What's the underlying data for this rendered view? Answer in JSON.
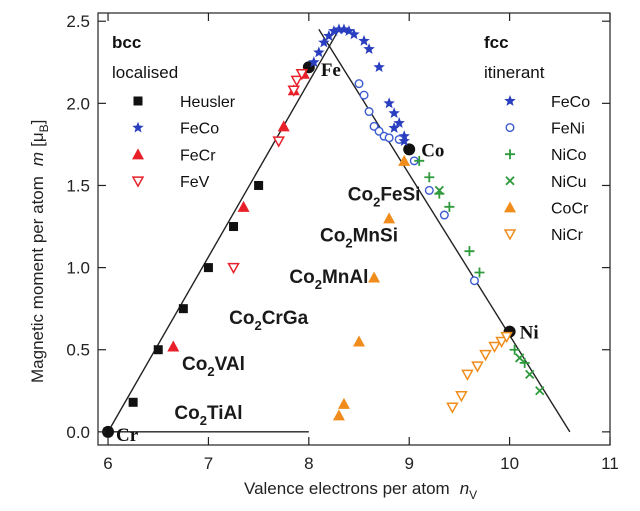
{
  "chart_data": {
    "type": "scatter",
    "xlabel": "Valence electrons per atom",
    "xlabel_symbol": "n",
    "xlabel_sub": "V",
    "ylabel": "Magnetic moment per atom",
    "ylabel_symbol": "m",
    "ylabel_unit": "[μ",
    "ylabel_unit_sub": "B",
    "ylabel_unit_close": "]",
    "xlim": [
      5.9,
      11.0
    ],
    "ylim": [
      -0.08,
      2.55
    ],
    "xticks": [
      "6",
      "7",
      "8",
      "9",
      "10",
      "11"
    ],
    "yticks": [
      "0.0",
      "0.5",
      "1.0",
      "1.5",
      "2.0",
      "2.5"
    ],
    "legend_left": {
      "title_bold": "bcc",
      "title": "localised",
      "entries": [
        "Heusler",
        "FeCo",
        "FeCr",
        "FeV"
      ]
    },
    "legend_right": {
      "title_bold": "fcc",
      "title": "itinerant",
      "entries": [
        "FeCo",
        "FeNi",
        "NiCo",
        "NiCu",
        "CoCr",
        "NiCr"
      ]
    },
    "element_labels": [
      {
        "text": "Cr",
        "x": 6.0,
        "y": 0.0
      },
      {
        "text": "Fe",
        "x": 8.0,
        "y": 2.22
      },
      {
        "text": "Co",
        "x": 9.0,
        "y": 1.72
      },
      {
        "text": "Ni",
        "x": 10.0,
        "y": 0.61
      }
    ],
    "compound_labels": [
      {
        "base": "Co",
        "sub": "2",
        "rest": "FeSi",
        "x": 8.75,
        "y": 1.45
      },
      {
        "base": "Co",
        "sub": "2",
        "rest": "MnSi",
        "x": 8.5,
        "y": 1.2
      },
      {
        "base": "Co",
        "sub": "2",
        "rest": "MnAl",
        "x": 8.2,
        "y": 0.95
      },
      {
        "base": "Co",
        "sub": "2",
        "rest": "CrGa",
        "x": 7.6,
        "y": 0.7
      },
      {
        "base": "Co",
        "sub": "2",
        "rest": "VAl",
        "x": 7.05,
        "y": 0.42
      },
      {
        "base": "Co",
        "sub": "2",
        "rest": "TiAl",
        "x": 7.0,
        "y": 0.12
      }
    ],
    "colors": {
      "Heusler": "#111111",
      "FeCo": "#2a3fbf",
      "FeNi": "#3c5bd0",
      "FeCr": "#e8202a",
      "FeV": "#e8202a",
      "NiCo": "#2e9a3c",
      "NiCu": "#2e9a3c",
      "CoCr": "#f08c1c",
      "NiCr": "#f08c1c",
      "line": "#222222",
      "element": "#111111"
    },
    "slater_pauling_lines": [
      {
        "x": [
          6.0,
          8.3
        ],
        "y": [
          0.0,
          2.45
        ]
      },
      {
        "x": [
          8.1,
          10.6
        ],
        "y": [
          2.45,
          0.0
        ]
      }
    ],
    "baseline": {
      "x": [
        6.0,
        8.0
      ],
      "y": [
        0.0,
        0.0
      ]
    },
    "series": [
      {
        "name": "Heusler",
        "marker": "square",
        "x": [
          6.0,
          6.25,
          6.5,
          6.75,
          7.0,
          7.25,
          7.5
        ],
        "y": [
          0.0,
          0.18,
          0.5,
          0.75,
          1.0,
          1.25,
          1.5
        ]
      },
      {
        "name": "Elements",
        "marker": "dot",
        "x": [
          6.0,
          8.0,
          9.0,
          10.0
        ],
        "y": [
          0.0,
          2.22,
          1.72,
          0.61
        ]
      },
      {
        "name": "FeCr",
        "marker": "triangle",
        "x": [
          6.65,
          7.35,
          7.75,
          7.85,
          7.95
        ],
        "y": [
          0.52,
          1.37,
          1.86,
          2.08,
          2.18
        ]
      },
      {
        "name": "FeV",
        "marker": "triangle-down",
        "x": [
          7.25,
          7.7,
          7.85,
          7.88,
          7.93
        ],
        "y": [
          1.0,
          1.77,
          2.08,
          2.14,
          2.18
        ]
      },
      {
        "name": "FeCo bcc",
        "marker": "star",
        "x": [
          8.05,
          8.1,
          8.15,
          8.2,
          8.25,
          8.3,
          8.35,
          8.4,
          8.45,
          8.55,
          8.6,
          8.7,
          8.8,
          8.85,
          8.9,
          8.95
        ],
        "y": [
          2.25,
          2.31,
          2.37,
          2.41,
          2.44,
          2.45,
          2.45,
          2.44,
          2.42,
          2.38,
          2.33,
          2.22,
          2.0,
          1.94,
          1.88,
          1.8
        ]
      },
      {
        "name": "FeNi",
        "marker": "circle-open",
        "x": [
          8.5,
          8.55,
          8.6,
          8.65,
          8.7,
          8.75,
          8.8,
          8.9,
          9.05,
          9.2,
          9.35,
          9.65
        ],
        "y": [
          2.12,
          2.05,
          1.95,
          1.86,
          1.83,
          1.8,
          1.79,
          1.78,
          1.65,
          1.47,
          1.32,
          0.92
        ]
      },
      {
        "name": "FeCo fcc",
        "marker": "star",
        "x": [
          8.85,
          8.95
        ],
        "y": [
          1.85,
          1.77
        ]
      },
      {
        "name": "NiCo",
        "marker": "plus",
        "x": [
          9.1,
          9.2,
          9.3,
          9.4,
          9.6,
          9.7,
          10.05,
          10.15
        ],
        "y": [
          1.65,
          1.55,
          1.45,
          1.37,
          1.1,
          0.97,
          0.5,
          0.42
        ]
      },
      {
        "name": "NiCu",
        "marker": "cross",
        "x": [
          9.3,
          10.1,
          10.2,
          10.3
        ],
        "y": [
          1.47,
          0.45,
          0.35,
          0.25
        ]
      },
      {
        "name": "CoCr",
        "marker": "triangle",
        "x": [
          8.3,
          8.35,
          8.5,
          8.65,
          8.8,
          8.95
        ],
        "y": [
          0.1,
          0.17,
          0.55,
          0.94,
          1.3,
          1.65
        ]
      },
      {
        "name": "NiCr",
        "marker": "triangle-down",
        "x": [
          9.43,
          9.52,
          9.58,
          9.68,
          9.76,
          9.85,
          9.92,
          9.97
        ],
        "y": [
          0.15,
          0.22,
          0.35,
          0.4,
          0.47,
          0.52,
          0.55,
          0.58
        ]
      }
    ]
  }
}
